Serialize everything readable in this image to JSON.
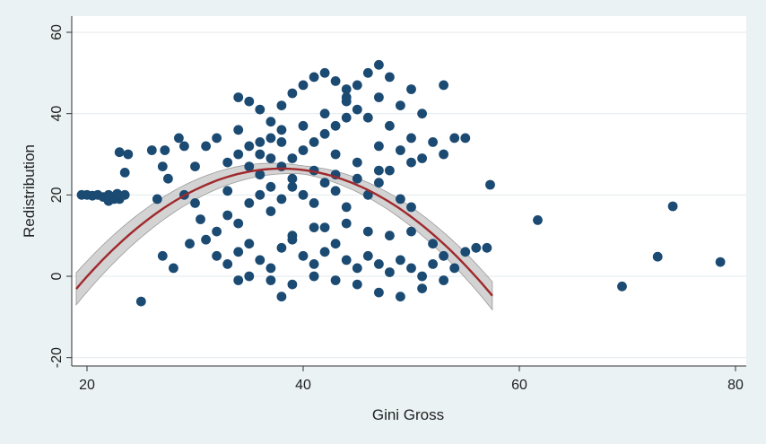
{
  "chart_data": {
    "type": "scatter",
    "title": "",
    "xlabel": "Gini Gross",
    "ylabel": "Redistribution",
    "xlim": [
      19,
      80
    ],
    "ylim": [
      -24,
      62
    ],
    "xticks": [
      "20",
      "40",
      "60",
      "80"
    ],
    "yticks": [
      "-20",
      "0",
      "20",
      "40",
      "60"
    ],
    "grid": "horizontal",
    "marker_color": "#1b4a72",
    "fit_line_color": "#a0282c",
    "ci_band_color": "#c4c4c4",
    "fit": {
      "type": "quadratic",
      "x_range": [
        19,
        57.5
      ],
      "points": [
        [
          19,
          -3
        ],
        [
          25,
          12.4
        ],
        [
          30,
          21.4
        ],
        [
          35,
          25.6
        ],
        [
          40,
          26.3
        ],
        [
          45,
          22.5
        ],
        [
          50,
          14.2
        ],
        [
          55,
          3.4
        ],
        [
          57.5,
          -5.2
        ]
      ]
    },
    "points": [
      [
        19.5,
        20
      ],
      [
        20,
        20
      ],
      [
        20.5,
        19.8
      ],
      [
        21,
        20
      ],
      [
        21.5,
        19.5
      ],
      [
        22,
        20
      ],
      [
        22.5,
        19
      ],
      [
        22,
        18.5
      ],
      [
        23,
        19
      ],
      [
        23.5,
        20
      ],
      [
        22.8,
        20.3
      ],
      [
        23,
        30.5
      ],
      [
        23.8,
        30
      ],
      [
        23.5,
        25.5
      ],
      [
        25,
        -6.2
      ],
      [
        26,
        31
      ],
      [
        26.5,
        19
      ],
      [
        27,
        27
      ],
      [
        27.2,
        31
      ],
      [
        27.5,
        24
      ],
      [
        28.5,
        34
      ],
      [
        29,
        32
      ],
      [
        29,
        20
      ],
      [
        30,
        27
      ],
      [
        31,
        32
      ],
      [
        32,
        34
      ],
      [
        30.5,
        14
      ],
      [
        28,
        2
      ],
      [
        27,
        5
      ],
      [
        29.5,
        8
      ],
      [
        31,
        9
      ],
      [
        32,
        11
      ],
      [
        30,
        18
      ],
      [
        33,
        28
      ],
      [
        34,
        30
      ],
      [
        33,
        21
      ],
      [
        35,
        32
      ],
      [
        36,
        33
      ],
      [
        37,
        34
      ],
      [
        38,
        36
      ],
      [
        36,
        25
      ],
      [
        37,
        22
      ],
      [
        38,
        27
      ],
      [
        39,
        29
      ],
      [
        40,
        31
      ],
      [
        41,
        33
      ],
      [
        42,
        35
      ],
      [
        43,
        37
      ],
      [
        44,
        39
      ],
      [
        45,
        41
      ],
      [
        34,
        44
      ],
      [
        35,
        43
      ],
      [
        36,
        41
      ],
      [
        37,
        38
      ],
      [
        38,
        42
      ],
      [
        39,
        45
      ],
      [
        40,
        47
      ],
      [
        41,
        49
      ],
      [
        42,
        50
      ],
      [
        43,
        48
      ],
      [
        44,
        46
      ],
      [
        45,
        47
      ],
      [
        46,
        50
      ],
      [
        47,
        52
      ],
      [
        48,
        49
      ],
      [
        44,
        43
      ],
      [
        46,
        39
      ],
      [
        48,
        37
      ],
      [
        47,
        32
      ],
      [
        49,
        31
      ],
      [
        50,
        28
      ],
      [
        51,
        29
      ],
      [
        50,
        34
      ],
      [
        52,
        33
      ],
      [
        53,
        30
      ],
      [
        54,
        34
      ],
      [
        55,
        34
      ],
      [
        51,
        40
      ],
      [
        50,
        46
      ],
      [
        53,
        47
      ],
      [
        33,
        15
      ],
      [
        34,
        13
      ],
      [
        35,
        18
      ],
      [
        36,
        20
      ],
      [
        37,
        16
      ],
      [
        38,
        19
      ],
      [
        39,
        22
      ],
      [
        40,
        20
      ],
      [
        41,
        18
      ],
      [
        42,
        23
      ],
      [
        43,
        21
      ],
      [
        44,
        17
      ],
      [
        45,
        24
      ],
      [
        46,
        20
      ],
      [
        47,
        23
      ],
      [
        48,
        26
      ],
      [
        49,
        19
      ],
      [
        50,
        17
      ],
      [
        41,
        12
      ],
      [
        39,
        10
      ],
      [
        32,
        5
      ],
      [
        33,
        3
      ],
      [
        34,
        6
      ],
      [
        35,
        8
      ],
      [
        36,
        4
      ],
      [
        37,
        2
      ],
      [
        38,
        7
      ],
      [
        39,
        9
      ],
      [
        40,
        5
      ],
      [
        41,
        3
      ],
      [
        42,
        6
      ],
      [
        43,
        8
      ],
      [
        44,
        4
      ],
      [
        45,
        2
      ],
      [
        46,
        5
      ],
      [
        47,
        3
      ],
      [
        48,
        1
      ],
      [
        49,
        4
      ],
      [
        50,
        2
      ],
      [
        51,
        0
      ],
      [
        52,
        3
      ],
      [
        53,
        5
      ],
      [
        54,
        2
      ],
      [
        55,
        6
      ],
      [
        56,
        7
      ],
      [
        57,
        7
      ],
      [
        53,
        -1
      ],
      [
        51,
        -3
      ],
      [
        49,
        -5
      ],
      [
        47,
        -4
      ],
      [
        45,
        -2
      ],
      [
        43,
        -1
      ],
      [
        41,
        0
      ],
      [
        39,
        -2
      ],
      [
        37,
        -1
      ],
      [
        35,
        0
      ],
      [
        34,
        -1
      ],
      [
        38,
        -5
      ],
      [
        48,
        10
      ],
      [
        50,
        11
      ],
      [
        52,
        8
      ],
      [
        46,
        11
      ],
      [
        44,
        13
      ],
      [
        42,
        12
      ],
      [
        43,
        30
      ],
      [
        45,
        28
      ],
      [
        47,
        26
      ],
      [
        41,
        26
      ],
      [
        39,
        24
      ],
      [
        37,
        29
      ],
      [
        35,
        27
      ],
      [
        36,
        30
      ],
      [
        40,
        37
      ],
      [
        42,
        40
      ],
      [
        44,
        44
      ],
      [
        38,
        33
      ],
      [
        34,
        36
      ],
      [
        47,
        44
      ],
      [
        49,
        42
      ],
      [
        43,
        25
      ],
      [
        57.3,
        22.5
      ],
      [
        61.7,
        13.8
      ],
      [
        69.5,
        -2.5
      ],
      [
        72.8,
        4.8
      ],
      [
        74.2,
        17.2
      ],
      [
        78.6,
        3.5
      ]
    ]
  }
}
